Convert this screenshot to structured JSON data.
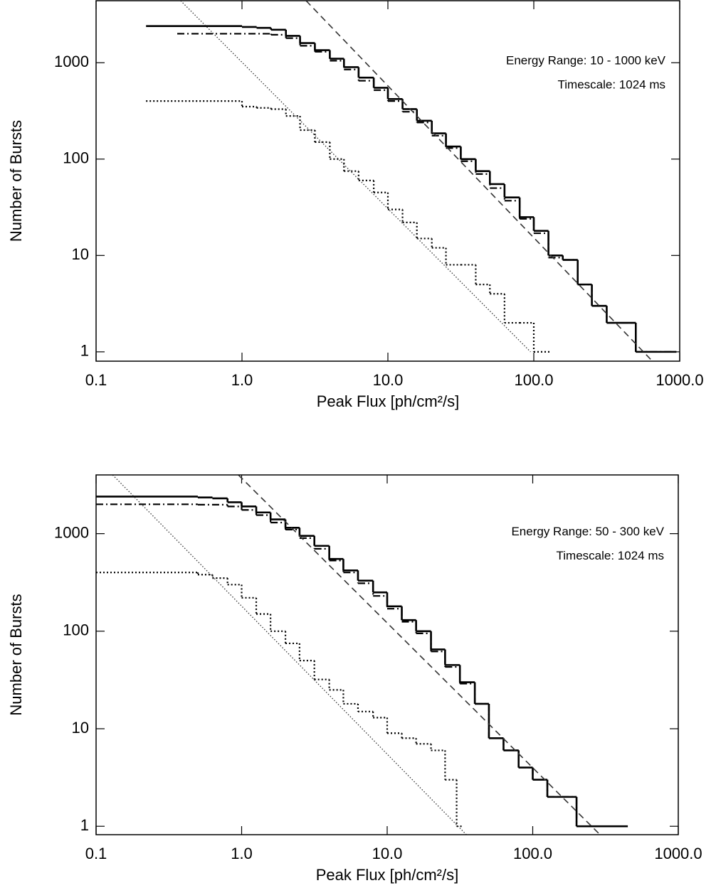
{
  "chart_data": [
    {
      "type": "line",
      "log_x": true,
      "log_y": true,
      "x_label": "Peak Flux [ph/cm²/s]",
      "y_label": "Number of Bursts",
      "annotations": [
        "Energy Range: 10 - 1000 keV",
        "Timescale: 1024 ms"
      ],
      "xlim": [
        0.1,
        1000
      ],
      "ylim": [
        0.8,
        4400
      ],
      "xticks": [
        0.1,
        {
          "value": 1,
          "label": "1.0"
        },
        {
          "value": 10,
          "label": "10.0"
        },
        {
          "value": 100,
          "label": "100.0"
        },
        {
          "value": 1000,
          "label": "1000.0"
        }
      ],
      "yticks": [
        1,
        10,
        100,
        1000
      ],
      "series": [
        {
          "color": "#000000",
          "linestyle": "solid",
          "drawstyle": "steps",
          "bins": [
            0.22,
            1.0,
            1.26,
            1.58,
            2.0,
            2.5,
            3.16,
            4.0,
            5.0,
            6.3,
            8.0,
            10,
            12.6,
            15.8,
            20,
            25,
            31.6,
            40,
            50,
            63,
            80,
            100,
            126,
            158,
            200,
            250,
            316,
            500,
            950
          ],
          "values": [
            2400,
            2350,
            2300,
            2200,
            1900,
            1600,
            1350,
            1100,
            900,
            700,
            550,
            420,
            330,
            250,
            185,
            135,
            100,
            75,
            55,
            40,
            25,
            18,
            10,
            9,
            5,
            3,
            2,
            1
          ]
        },
        {
          "color": "#000000",
          "linestyle": "dashdot",
          "drawstyle": "steps",
          "bins": [
            0.36,
            1.58,
            2.0,
            2.5,
            3.16,
            4.0,
            5.0,
            6.3,
            8.0,
            10,
            12.6,
            15.8,
            20,
            25,
            31.6,
            40,
            50,
            63,
            80,
            100,
            126,
            158,
            200,
            250,
            316,
            500,
            900
          ],
          "values": [
            2000,
            1950,
            1800,
            1500,
            1300,
            1050,
            850,
            650,
            520,
            400,
            310,
            240,
            175,
            130,
            95,
            70,
            50,
            37,
            24,
            17,
            9.5,
            9,
            5,
            3,
            2,
            1
          ]
        },
        {
          "color": "#000000",
          "linestyle": "dotted",
          "drawstyle": "steps",
          "bins": [
            0.22,
            1.0,
            1.26,
            1.58,
            2.0,
            2.5,
            3.16,
            4.0,
            5.0,
            6.3,
            8.0,
            10,
            12.6,
            15.8,
            20,
            25,
            31.6,
            40,
            50,
            63,
            80,
            100,
            130
          ],
          "values": [
            400,
            350,
            340,
            330,
            280,
            200,
            150,
            100,
            75,
            60,
            45,
            30,
            22,
            15,
            12,
            8,
            8,
            5,
            4,
            2,
            2,
            1
          ]
        },
        {
          "color": "#333333",
          "linestyle": "fine-dotted",
          "drawstyle": "default",
          "x": [
            0.38,
            95
          ],
          "values": [
            4400,
            1
          ]
        },
        {
          "color": "#333333",
          "linestyle": "dashed",
          "drawstyle": "default",
          "x": [
            2.75,
            650
          ],
          "values": [
            4400,
            0.8
          ]
        }
      ]
    },
    {
      "type": "line",
      "log_x": true,
      "log_y": true,
      "x_label": "Peak Flux [ph/cm²/s]",
      "y_label": "Number of Bursts",
      "annotations": [
        "Energy Range: 50 - 300 keV",
        "Timescale: 1024 ms"
      ],
      "xlim": [
        0.1,
        1000
      ],
      "ylim": [
        0.82,
        4000
      ],
      "xticks": [
        0.1,
        {
          "value": 1,
          "label": "1.0"
        },
        {
          "value": 10,
          "label": "10.0"
        },
        {
          "value": 100,
          "label": "100.0"
        },
        {
          "value": 1000,
          "label": "1000.0"
        }
      ],
      "yticks": [
        1,
        10,
        100,
        1000
      ],
      "series": [
        {
          "color": "#000000",
          "linestyle": "solid",
          "drawstyle": "steps",
          "bins": [
            0.1,
            0.5,
            0.63,
            0.8,
            1.0,
            1.26,
            1.58,
            2.0,
            2.5,
            3.16,
            4.0,
            5.0,
            6.3,
            8.0,
            10,
            12.6,
            15.8,
            20,
            25,
            31.6,
            40,
            50,
            63,
            80,
            100,
            126,
            200,
            450
          ],
          "values": [
            2400,
            2350,
            2300,
            2100,
            1900,
            1650,
            1400,
            1150,
            950,
            750,
            550,
            420,
            330,
            250,
            180,
            130,
            100,
            65,
            45,
            30,
            18,
            8,
            6,
            4,
            3,
            2,
            1
          ]
        },
        {
          "color": "#000000",
          "linestyle": "dashdot",
          "drawstyle": "steps",
          "bins": [
            0.1,
            0.5,
            0.8,
            1.0,
            1.26,
            1.58,
            2.0,
            2.5,
            3.16,
            4.0,
            5.0,
            6.3,
            8.0,
            10,
            12.6,
            15.8,
            20,
            25,
            31.6,
            40,
            50,
            63,
            80,
            100,
            126,
            200,
            450
          ],
          "values": [
            2000,
            1980,
            1900,
            1750,
            1550,
            1300,
            1100,
            900,
            700,
            530,
            400,
            310,
            230,
            170,
            125,
            95,
            62,
            43,
            29,
            18,
            8,
            6,
            4,
            3,
            2,
            1
          ]
        },
        {
          "color": "#000000",
          "linestyle": "dotted",
          "drawstyle": "steps",
          "bins": [
            0.1,
            0.5,
            0.63,
            0.8,
            1.0,
            1.26,
            1.58,
            2.0,
            2.5,
            3.16,
            4.0,
            5.0,
            6.3,
            8.0,
            10,
            12.6,
            15.8,
            20,
            25,
            30,
            33
          ],
          "values": [
            400,
            380,
            350,
            300,
            220,
            150,
            100,
            75,
            50,
            32,
            25,
            18,
            15,
            13,
            9,
            8,
            7,
            6,
            3,
            1
          ]
        },
        {
          "color": "#333333",
          "linestyle": "fine-dotted",
          "drawstyle": "default",
          "x": [
            0.13,
            35
          ],
          "values": [
            4000,
            0.82
          ]
        },
        {
          "color": "#333333",
          "linestyle": "dashed",
          "drawstyle": "default",
          "x": [
            0.95,
            290
          ],
          "values": [
            4000,
            0.82
          ]
        }
      ]
    }
  ]
}
